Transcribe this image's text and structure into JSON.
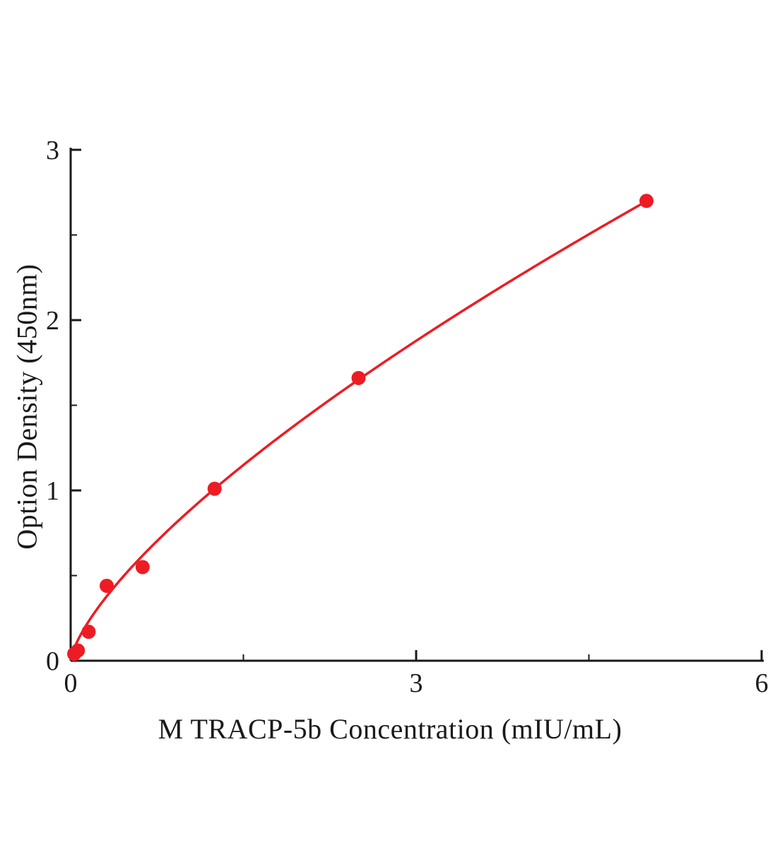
{
  "chart_data": {
    "type": "scatter",
    "title": "",
    "xlabel": "M TRACP-5b Concentration (mIU/mL)",
    "ylabel": "Option Density (450nm)",
    "xlim": [
      0,
      6
    ],
    "ylim": [
      0,
      3
    ],
    "xticks": [
      0,
      3,
      6
    ],
    "yticks": [
      0,
      1,
      2,
      3
    ],
    "x_minor_ticks": [
      1.5,
      4.5
    ],
    "y_minor_ticks": [
      0.5,
      1.5,
      2.5
    ],
    "grid": false,
    "legend": "none",
    "points": [
      {
        "x": 0.031,
        "y": 0.04
      },
      {
        "x": 0.063,
        "y": 0.06
      },
      {
        "x": 0.156,
        "y": 0.17
      },
      {
        "x": 0.313,
        "y": 0.44
      },
      {
        "x": 0.625,
        "y": 0.55
      },
      {
        "x": 1.25,
        "y": 1.01
      },
      {
        "x": 2.5,
        "y": 1.66
      },
      {
        "x": 5.0,
        "y": 2.7
      }
    ],
    "fit_curve": {
      "type": "power",
      "a": 0.862,
      "b": 0.709,
      "x_start": 0.002,
      "x_end": 5.0
    },
    "marker_color": "#ed1c24",
    "line_color": "#ed1c24",
    "axis_color": "#1a1a1a"
  }
}
